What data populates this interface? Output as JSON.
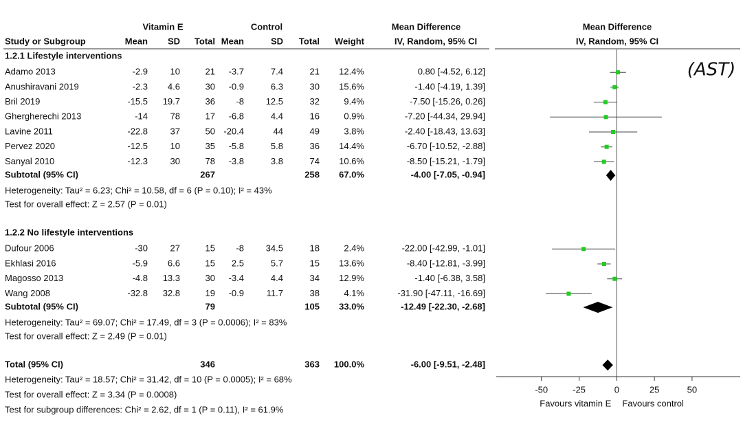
{
  "header": {
    "group1": "Vitamin E",
    "group2": "Control",
    "md_title": "Mean Difference",
    "md_method": "IV, Random, 95% CI",
    "plot_title": "Mean Difference",
    "plot_method": "IV, Random, 95% CI",
    "columns": [
      "Study or Subgroup",
      "Mean",
      "SD",
      "Total",
      "Mean",
      "SD",
      "Total",
      "Weight"
    ]
  },
  "annotation": "(AST)",
  "subgroups": [
    {
      "title": "1.2.1 Lifestyle interventions",
      "studies": [
        {
          "name": "Adamo 2013",
          "e_mean": -2.9,
          "e_sd": 10,
          "e_n": 21,
          "c_mean": -3.7,
          "c_sd": 7.4,
          "c_n": 21,
          "weight": "12.4%",
          "md": [
            0.8,
            -4.52,
            6.12
          ],
          "md_label": "0.80 [-4.52, 6.12]"
        },
        {
          "name": "Anushiravani 2019",
          "e_mean": -2.3,
          "e_sd": 4.6,
          "e_n": 30,
          "c_mean": -0.9,
          "c_sd": 6.3,
          "c_n": 30,
          "weight": "15.6%",
          "md": [
            -1.4,
            -4.19,
            1.39
          ],
          "md_label": "-1.40 [-4.19, 1.39]"
        },
        {
          "name": "Bril 2019",
          "e_mean": -15.5,
          "e_sd": 19.7,
          "e_n": 36,
          "c_mean": -8,
          "c_sd": 12.5,
          "c_n": 32,
          "weight": "9.4%",
          "md": [
            -7.5,
            -15.26,
            0.26
          ],
          "md_label": "-7.50 [-15.26, 0.26]"
        },
        {
          "name": "Ghergherechi 2013",
          "e_mean": -14,
          "e_sd": 78,
          "e_n": 17,
          "c_mean": -6.8,
          "c_sd": 4.4,
          "c_n": 16,
          "weight": "0.9%",
          "md": [
            -7.2,
            -44.34,
            29.94
          ],
          "md_label": "-7.20 [-44.34, 29.94]"
        },
        {
          "name": "Lavine 2011",
          "e_mean": -22.8,
          "e_sd": 37,
          "e_n": 50,
          "c_mean": -20.4,
          "c_sd": 44,
          "c_n": 49,
          "weight": "3.8%",
          "md": [
            -2.4,
            -18.43,
            13.63
          ],
          "md_label": "-2.40 [-18.43, 13.63]"
        },
        {
          "name": "Pervez 2020",
          "e_mean": -12.5,
          "e_sd": 10,
          "e_n": 35,
          "c_mean": -5.8,
          "c_sd": 5.8,
          "c_n": 36,
          "weight": "14.4%",
          "md": [
            -6.7,
            -10.52,
            -2.88
          ],
          "md_label": "-6.70 [-10.52, -2.88]"
        },
        {
          "name": "Sanyal 2010",
          "e_mean": -12.3,
          "e_sd": 30,
          "e_n": 78,
          "c_mean": -3.8,
          "c_sd": 3.8,
          "c_n": 74,
          "weight": "10.6%",
          "md": [
            -8.5,
            -15.21,
            -1.79
          ],
          "md_label": "-8.50 [-15.21, -1.79]"
        }
      ],
      "subtotal": {
        "label": "Subtotal (95% CI)",
        "e_n": 267,
        "c_n": 258,
        "weight": "67.0%",
        "md": [
          -4,
          -7.05,
          -0.94
        ],
        "md_label": "-4.00 [-7.05, -0.94]"
      },
      "heterogeneity": "Heterogeneity: Tau² = 6.23; Chi² = 10.58, df = 6 (P = 0.10); I² = 43%",
      "test": "Test for overall effect: Z = 2.57 (P = 0.01)"
    },
    {
      "title": "1.2.2 No lifestyle interventions",
      "studies": [
        {
          "name": "Dufour 2006",
          "e_mean": -30,
          "e_sd": 27,
          "e_n": 15,
          "c_mean": -8,
          "c_sd": 34.5,
          "c_n": 18,
          "weight": "2.4%",
          "md": [
            -22,
            -42.99,
            -1.01
          ],
          "md_label": "-22.00 [-42.99, -1.01]"
        },
        {
          "name": "Ekhlasi 2016",
          "e_mean": -5.9,
          "e_sd": 6.6,
          "e_n": 15,
          "c_mean": 2.5,
          "c_sd": 5.7,
          "c_n": 15,
          "weight": "13.6%",
          "md": [
            -8.4,
            -12.81,
            -3.99
          ],
          "md_label": "-8.40 [-12.81, -3.99]"
        },
        {
          "name": "Magosso 2013",
          "e_mean": -4.8,
          "e_sd": 13.3,
          "e_n": 30,
          "c_mean": -3.4,
          "c_sd": 4.4,
          "c_n": 34,
          "weight": "12.9%",
          "md": [
            -1.4,
            -6.38,
            3.58
          ],
          "md_label": "-1.40 [-6.38, 3.58]"
        },
        {
          "name": "Wang 2008",
          "e_mean": -32.8,
          "e_sd": 32.8,
          "e_n": 19,
          "c_mean": -0.9,
          "c_sd": 11.7,
          "c_n": 38,
          "weight": "4.1%",
          "md": [
            -31.9,
            -47.11,
            -16.69
          ],
          "md_label": "-31.90 [-47.11, -16.69]"
        }
      ],
      "subtotal": {
        "label": "Subtotal (95% CI)",
        "e_n": 79,
        "c_n": 105,
        "weight": "33.0%",
        "md": [
          -12.49,
          -22.3,
          -2.68
        ],
        "md_label": "-12.49 [-22.30, -2.68]"
      },
      "heterogeneity": "Heterogeneity: Tau² = 69.07; Chi² = 17.49, df = 3 (P = 0.0006); I² = 83%",
      "test": "Test for overall effect: Z = 2.49 (P = 0.01)"
    }
  ],
  "total": {
    "label": "Total (95% CI)",
    "e_n": 346,
    "c_n": 363,
    "weight": "100.0%",
    "md": [
      -6,
      -9.51,
      -2.48
    ],
    "md_label": "-6.00 [-9.51, -2.48]",
    "heterogeneity": "Heterogeneity: Tau² = 18.57; Chi² = 31.42, df = 10 (P = 0.0005); I² = 68%",
    "test": "Test for overall effect: Z = 3.34 (P = 0.0008)",
    "subgroup_test": "Test for subgroup differences: Chi² = 2.62, df = 1 (P = 0.11), I² = 61.9%"
  },
  "axis": {
    "xlim": [
      -80,
      82
    ],
    "xticks": [
      -50,
      -25,
      0,
      25,
      50
    ],
    "left_label": "Favours vitamin E",
    "right_label": "Favours control",
    "point_color": "#22cc22"
  }
}
